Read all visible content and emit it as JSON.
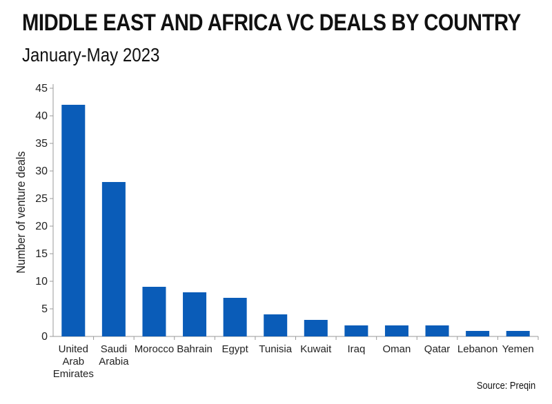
{
  "title": "MIDDLE EAST AND AFRICA VC DEALS BY COUNTRY",
  "subtitle": "January-May 2023",
  "source": "Source: Preqin",
  "colors": {
    "bar": "#0a5cb8",
    "axis": "#999999"
  },
  "chart_data": {
    "type": "bar",
    "title": "MIDDLE EAST AND AFRICA VC DEALS BY COUNTRY",
    "subtitle": "January-May 2023",
    "xlabel": "",
    "ylabel": "Number of venture deals",
    "ylim": [
      0,
      45
    ],
    "yticks": [
      0,
      5,
      10,
      15,
      20,
      25,
      30,
      35,
      40,
      45
    ],
    "grid": false,
    "categories": [
      [
        "United",
        "Arab",
        "Emirates"
      ],
      [
        "Saudi",
        "Arabia"
      ],
      [
        "Morocco"
      ],
      [
        "Bahrain"
      ],
      [
        "Egypt"
      ],
      [
        "Tunisia"
      ],
      [
        "Kuwait"
      ],
      [
        "Iraq"
      ],
      [
        "Oman"
      ],
      [
        "Qatar"
      ],
      [
        "Lebanon"
      ],
      [
        "Yemen"
      ]
    ],
    "values": [
      42,
      28,
      9,
      8,
      7,
      4,
      3,
      2,
      2,
      2,
      1,
      1
    ]
  }
}
